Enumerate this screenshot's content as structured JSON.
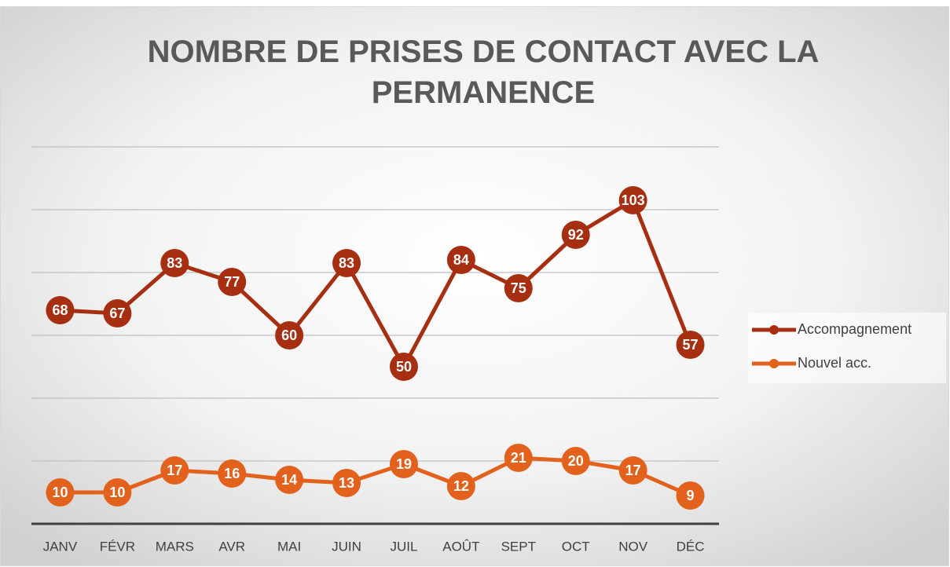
{
  "chart_data": {
    "type": "line",
    "title": "NOMBRE DE PRISES DE CONTACT AVEC LA PERMANENCE",
    "categories": [
      "JANV",
      "FÉVR",
      "MARS",
      "AVR",
      "MAI",
      "JUIN",
      "JUIL",
      "AOÛT",
      "SEPT",
      "OCT",
      "NOV",
      "DÉC"
    ],
    "series": [
      {
        "name": "Accompagnement",
        "color": "#a62f12",
        "values": [
          68,
          67,
          83,
          77,
          60,
          83,
          50,
          84,
          75,
          92,
          103,
          57
        ]
      },
      {
        "name": "Nouvel acc.",
        "color": "#e2621d",
        "values": [
          10,
          10,
          17,
          16,
          14,
          13,
          19,
          12,
          21,
          20,
          17,
          9
        ]
      }
    ],
    "ylim": [
      0,
      120
    ],
    "yticks": [
      0,
      20,
      40,
      60,
      80,
      100,
      120
    ],
    "grid": true,
    "legend": "right"
  }
}
